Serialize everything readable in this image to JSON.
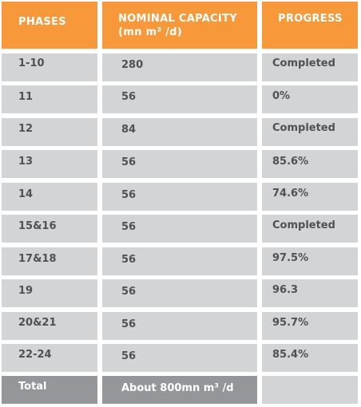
{
  "headers": {
    "phases": "PHASES",
    "capacity_line1": "NOMINAL CAPACITY",
    "capacity_line2": "(mn m³ /d)",
    "progress": "PROGRESS"
  },
  "rows": [
    {
      "phase": "1-10",
      "capacity": "280",
      "progress": "Completed"
    },
    {
      "phase": "11",
      "capacity": "56",
      "progress": "0%"
    },
    {
      "phase": "12",
      "capacity": "84",
      "progress": "Completed"
    },
    {
      "phase": "13",
      "capacity": "56",
      "progress": "85.6%"
    },
    {
      "phase": "14",
      "capacity": "56",
      "progress": "74.6%"
    },
    {
      "phase": "15&16",
      "capacity": "56",
      "progress": "Completed"
    },
    {
      "phase": "17&18",
      "capacity": "56",
      "progress": "97.5%"
    },
    {
      "phase": "19",
      "capacity": "56",
      "progress": "96.3"
    },
    {
      "phase": "20&21",
      "capacity": "56",
      "progress": "95.7%"
    },
    {
      "phase": "22-24",
      "capacity": "56",
      "progress": "85.4%"
    }
  ],
  "total": {
    "label": "Total",
    "capacity": "About 800mn m³ /d",
    "progress": ""
  },
  "colors": {
    "header_bg": "#f7983a",
    "row_bg": "#d3d4d6",
    "total_bg": "#959699",
    "body_text": "#4f5154",
    "header_text": "#ffffff"
  }
}
